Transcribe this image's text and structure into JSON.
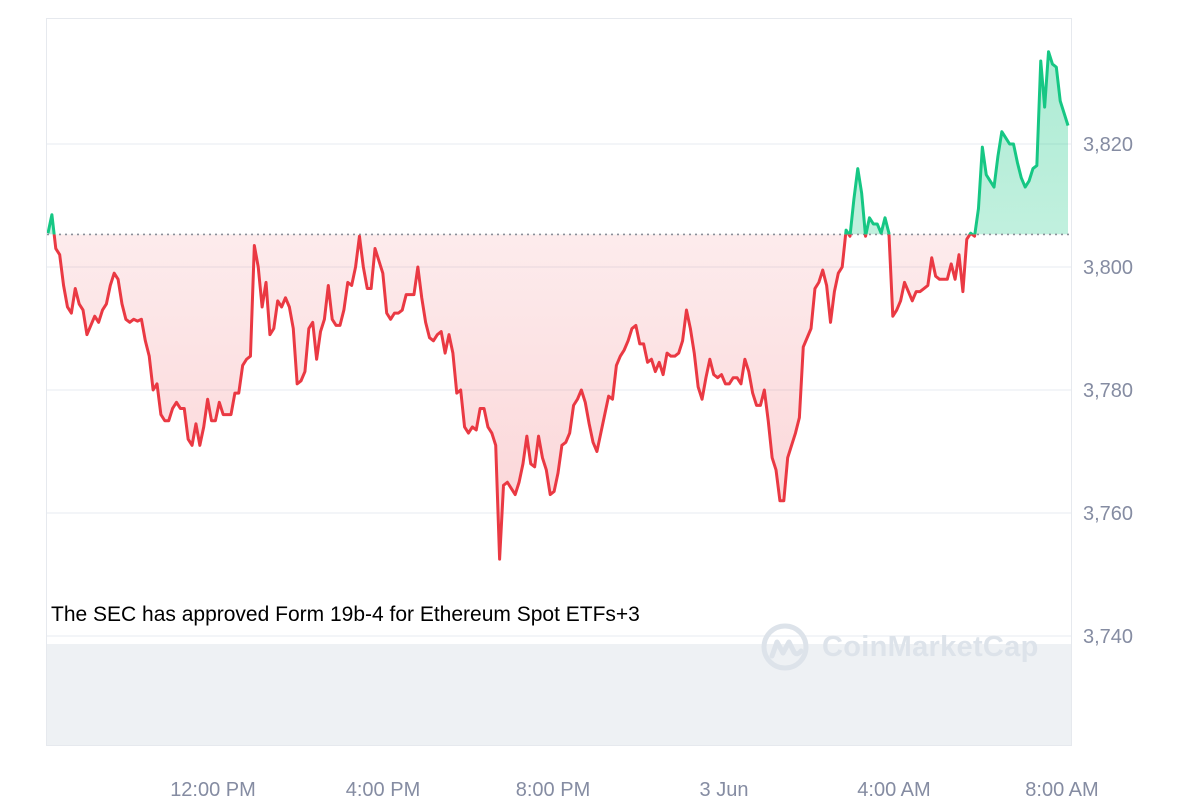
{
  "chart_data": {
    "type": "area",
    "reference_value": 3805.3,
    "y_ticks": [
      3740,
      3760,
      3780,
      3800,
      3820
    ],
    "y_tick_labels": [
      "3,740",
      "3,760",
      "3,780",
      "3,800",
      "3,820"
    ],
    "ylim": [
      3722,
      3841
    ],
    "x_tick_labels": [
      "12:00 PM",
      "4:00 PM",
      "8:00 PM",
      "3 Jun",
      "4:00 AM",
      "8:00 AM"
    ],
    "grid": true,
    "colors": {
      "above": "#16c784",
      "below": "#ea3943",
      "grid": "#eff2f5",
      "axis": "#e6e9ee",
      "volume": "#eef1f4"
    },
    "series": [
      {
        "values": [
          3805.5,
          3808.5,
          3803,
          3802,
          3797,
          3793.5,
          3792.5,
          3796.5,
          3794,
          3793,
          3789,
          3790.5,
          3792,
          3791,
          3793,
          3794,
          3797,
          3799,
          3798,
          3794,
          3791.5,
          3791,
          3791.5,
          3791.2,
          3791.5,
          3788,
          3785.5,
          3780,
          3781,
          3776,
          3775,
          3775,
          3777,
          3778,
          3777,
          3777,
          3772,
          3771,
          3774.5,
          3771,
          3774,
          3778.5,
          3775,
          3775,
          3778,
          3776,
          3776,
          3776,
          3779.5,
          3779.5,
          3784,
          3785,
          3785.5,
          3803.5,
          3800,
          3793.5,
          3797.5,
          3789,
          3790,
          3794.5,
          3793.5,
          3795,
          3793.5,
          3790,
          3781,
          3781.5,
          3783,
          3790,
          3791,
          3785,
          3789.5,
          3791.5,
          3797,
          3791.5,
          3790.5,
          3790.5,
          3793,
          3797.5,
          3797,
          3800,
          3805,
          3800,
          3796.5,
          3796.5,
          3803,
          3801,
          3799,
          3792.5,
          3791.5,
          3792.5,
          3792.5,
          3793,
          3795.5,
          3795.5,
          3795.5,
          3800,
          3795,
          3791,
          3788.5,
          3788,
          3789,
          3789.5,
          3786,
          3789,
          3786,
          3779.5,
          3780,
          3774,
          3773,
          3774,
          3773.5,
          3777,
          3777,
          3774,
          3773,
          3771,
          3752.5,
          3764.5,
          3765,
          3764,
          3763,
          3765,
          3768,
          3772.5,
          3768,
          3767.5,
          3772.5,
          3769,
          3767,
          3763,
          3763.5,
          3766.5,
          3771,
          3771.5,
          3773,
          3777.5,
          3778.5,
          3780,
          3778,
          3774.5,
          3771.5,
          3770,
          3773,
          3776,
          3779,
          3778.5,
          3784,
          3785.5,
          3786.5,
          3788,
          3790,
          3790.5,
          3787.5,
          3787.5,
          3784.5,
          3785,
          3783,
          3784.5,
          3782.5,
          3786,
          3785.5,
          3785.5,
          3786,
          3788,
          3793,
          3790,
          3786,
          3780.5,
          3778.5,
          3782,
          3785,
          3782.5,
          3782,
          3782.5,
          3781,
          3781,
          3782,
          3782,
          3781,
          3785,
          3783,
          3779.5,
          3777.5,
          3777.5,
          3780,
          3775,
          3769,
          3767,
          3762,
          3762,
          3769,
          3771,
          3773,
          3775.5,
          3787,
          3788.5,
          3790,
          3796.5,
          3797.5,
          3799.5,
          3797,
          3791,
          3796,
          3799,
          3800,
          3806,
          3805,
          3811,
          3816,
          3812,
          3805,
          3808,
          3807,
          3807,
          3805.5,
          3808,
          3805.5,
          3792,
          3793,
          3794.5,
          3797.5,
          3796,
          3794.5,
          3796,
          3796,
          3796.5,
          3797,
          3801.5,
          3798.5,
          3798,
          3798,
          3798,
          3800.5,
          3798,
          3802,
          3796,
          3804.5,
          3805.5,
          3805,
          3809.5,
          3819.5,
          3815,
          3814,
          3813,
          3818,
          3822,
          3821,
          3820,
          3820,
          3817,
          3814.5,
          3813,
          3814,
          3816,
          3816.5,
          3833.5,
          3826,
          3835,
          3833,
          3832.5,
          3827,
          3825,
          3823
        ]
      }
    ],
    "annotation": "The SEC has approved Form 19b-4 for Ethereum Spot ETFs+3"
  },
  "watermark": {
    "brand_name": "CoinMarketCap",
    "icon": "coinmarketcap-logo-icon"
  }
}
